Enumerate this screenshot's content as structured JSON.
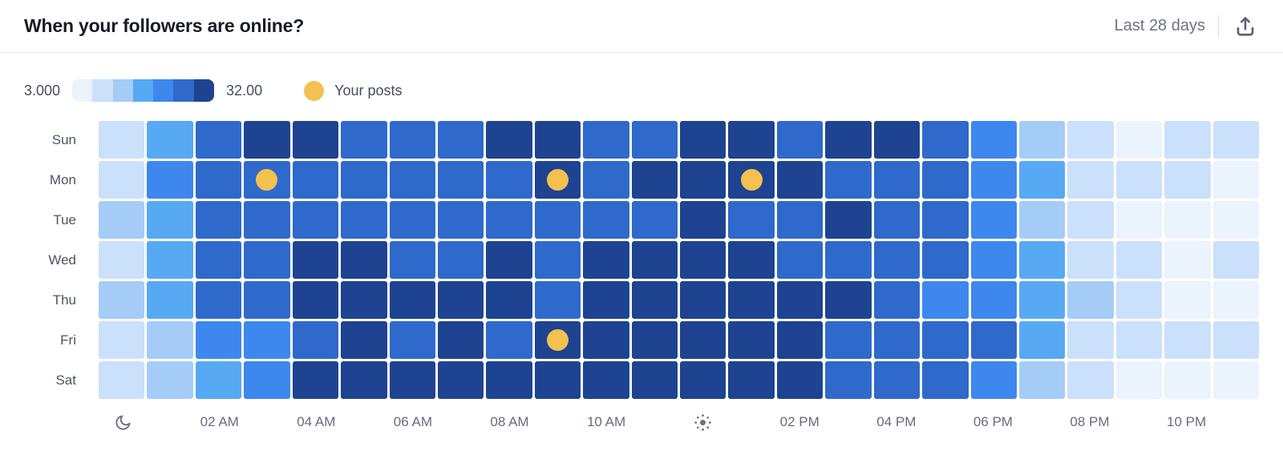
{
  "header": {
    "title": "When your followers are online?",
    "range_label": "Last 28 days"
  },
  "icons": {
    "export": "upload-icon",
    "night": "moon-icon",
    "day": "sun-icon"
  },
  "legend": {
    "min_label": "3.000",
    "max_label": "32.00",
    "posts_label": "Your posts",
    "posts_color": "#f2c14f"
  },
  "chart_data": {
    "type": "heatmap",
    "title": "When your followers are online?",
    "scale": {
      "min": 3.0,
      "max": 32.0,
      "levels": 7
    },
    "palette": [
      "#ebf3fd",
      "#cbe0fa",
      "#a5ccf7",
      "#57a9f4",
      "#3d87ef",
      "#2f69cb",
      "#1e4390"
    ],
    "day_labels": [
      "Sun",
      "Mon",
      "Tue",
      "Wed",
      "Thu",
      "Fri",
      "Sat"
    ],
    "hours": 24,
    "x_ticks": [
      {
        "col": 0,
        "icon": "moon"
      },
      {
        "col": 2,
        "label": "02 AM"
      },
      {
        "col": 4,
        "label": "04 AM"
      },
      {
        "col": 6,
        "label": "06 AM"
      },
      {
        "col": 8,
        "label": "08 AM"
      },
      {
        "col": 10,
        "label": "10 AM"
      },
      {
        "col": 12,
        "icon": "sun"
      },
      {
        "col": 14,
        "label": "02 PM"
      },
      {
        "col": 16,
        "label": "04 PM"
      },
      {
        "col": 18,
        "label": "06 PM"
      },
      {
        "col": 20,
        "label": "08 PM"
      },
      {
        "col": 22,
        "label": "10 PM"
      }
    ],
    "levels": [
      [
        1,
        3,
        5,
        6,
        6,
        5,
        5,
        5,
        6,
        6,
        5,
        5,
        6,
        6,
        5,
        6,
        6,
        5,
        4,
        2,
        1,
        0,
        1,
        1
      ],
      [
        1,
        4,
        5,
        5,
        5,
        5,
        5,
        5,
        5,
        6,
        5,
        6,
        6,
        6,
        6,
        5,
        5,
        5,
        4,
        3,
        1,
        1,
        1,
        0
      ],
      [
        2,
        3,
        5,
        5,
        5,
        5,
        5,
        5,
        5,
        5,
        5,
        5,
        6,
        5,
        5,
        6,
        5,
        5,
        4,
        2,
        1,
        0,
        0,
        0
      ],
      [
        1,
        3,
        5,
        5,
        6,
        6,
        5,
        5,
        6,
        5,
        6,
        6,
        6,
        6,
        5,
        5,
        5,
        5,
        4,
        3,
        1,
        1,
        0,
        1
      ],
      [
        2,
        3,
        5,
        5,
        6,
        6,
        6,
        6,
        6,
        5,
        6,
        6,
        6,
        6,
        6,
        6,
        5,
        4,
        4,
        3,
        2,
        1,
        0,
        0
      ],
      [
        1,
        2,
        4,
        4,
        5,
        6,
        5,
        6,
        5,
        6,
        6,
        6,
        6,
        6,
        6,
        5,
        5,
        5,
        5,
        3,
        1,
        1,
        1,
        1
      ],
      [
        1,
        2,
        3,
        4,
        6,
        6,
        6,
        6,
        6,
        6,
        6,
        6,
        6,
        6,
        6,
        5,
        5,
        5,
        4,
        2,
        1,
        0,
        0,
        0
      ]
    ],
    "posts": [
      {
        "row": 1,
        "col": 3
      },
      {
        "row": 1,
        "col": 9
      },
      {
        "row": 1,
        "col": 13
      },
      {
        "row": 5,
        "col": 9
      }
    ]
  }
}
